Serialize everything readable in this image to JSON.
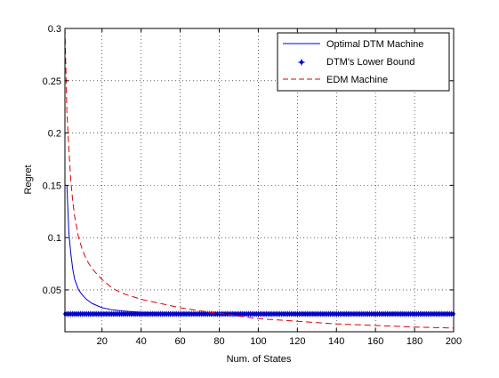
{
  "chart_data": {
    "type": "line",
    "title": "",
    "xlabel": "Num. of States",
    "ylabel": "Regret",
    "xlim": [
      1,
      200
    ],
    "ylim": [
      0.01,
      0.3
    ],
    "xticks": [
      20,
      40,
      60,
      80,
      100,
      120,
      140,
      160,
      180,
      200
    ],
    "yticks": [
      0.05,
      0.1,
      0.15,
      0.2,
      0.25,
      0.3
    ],
    "ytick_labels": [
      "0.05",
      "0.1",
      "0.15",
      "0.2",
      "0.25",
      "0.3"
    ],
    "grid": true,
    "legend_position": "top-right",
    "series": [
      {
        "name": "Optimal DTM Machine",
        "style": "solid",
        "color": "#0000cc",
        "x": [
          2,
          3,
          4,
          5,
          6,
          8,
          10,
          12,
          15,
          20,
          25,
          30,
          40,
          50,
          60,
          80,
          100,
          150,
          200
        ],
        "y": [
          0.15,
          0.105,
          0.085,
          0.07,
          0.06,
          0.05,
          0.045,
          0.041,
          0.037,
          0.033,
          0.031,
          0.03,
          0.0285,
          0.028,
          0.0275,
          0.027,
          0.027,
          0.027,
          0.027
        ]
      },
      {
        "name": "DTM's Lower Bound",
        "style": "markers",
        "color": "#0000cc",
        "x_range": [
          1,
          200
        ],
        "y_constant": 0.027
      },
      {
        "name": "EDM Machine",
        "style": "dashed",
        "color": "#e00000",
        "x": [
          1,
          2,
          3,
          4,
          5,
          6,
          8,
          10,
          12,
          15,
          20,
          25,
          30,
          40,
          50,
          60,
          70,
          80,
          90,
          100,
          120,
          140,
          160,
          180,
          200
        ],
        "y": [
          0.3,
          0.22,
          0.185,
          0.155,
          0.135,
          0.12,
          0.1,
          0.088,
          0.079,
          0.07,
          0.06,
          0.052,
          0.047,
          0.041,
          0.037,
          0.033,
          0.03,
          0.0275,
          0.025,
          0.0225,
          0.02,
          0.0175,
          0.016,
          0.0145,
          0.0135
        ]
      }
    ]
  }
}
